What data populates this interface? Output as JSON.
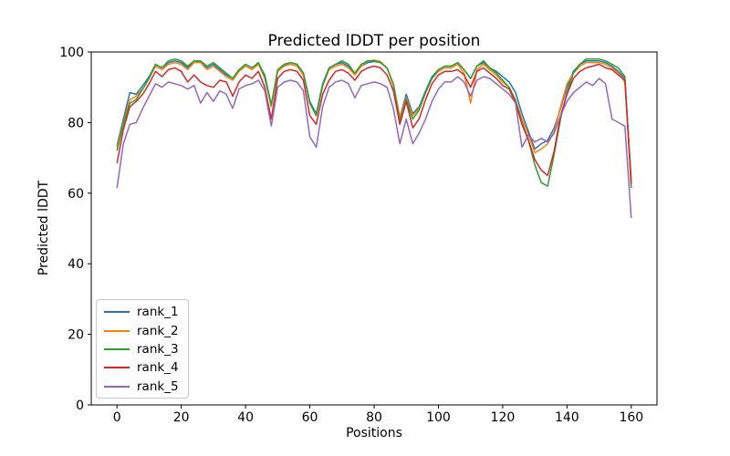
{
  "chart_data": {
    "type": "line",
    "title": "Predicted lDDT per position",
    "xlabel": "Positions",
    "ylabel": "Predicted lDDT",
    "xlim": [
      -8,
      168
    ],
    "ylim": [
      0,
      100
    ],
    "x_ticks": [
      0,
      20,
      40,
      60,
      80,
      100,
      120,
      140,
      160
    ],
    "y_ticks": [
      0,
      20,
      40,
      60,
      80,
      100
    ],
    "grid": false,
    "legend_position": "lower left",
    "axis_color": "#000000",
    "background_color": "#ffffff",
    "x": [
      0,
      2,
      4,
      6,
      8,
      10,
      12,
      14,
      16,
      18,
      20,
      22,
      24,
      26,
      28,
      30,
      32,
      34,
      36,
      38,
      40,
      42,
      44,
      46,
      48,
      50,
      52,
      54,
      56,
      58,
      60,
      62,
      64,
      66,
      68,
      70,
      72,
      74,
      76,
      78,
      80,
      82,
      84,
      86,
      88,
      90,
      92,
      94,
      96,
      98,
      100,
      102,
      104,
      106,
      108,
      110,
      112,
      114,
      116,
      118,
      120,
      122,
      124,
      126,
      128,
      130,
      132,
      134,
      136,
      138,
      140,
      142,
      144,
      146,
      148,
      150,
      152,
      154,
      156,
      158,
      160
    ],
    "series": [
      {
        "name": "rank_1",
        "color": "#1f77b4",
        "values": [
          73.5,
          81,
          88.5,
          88,
          90.5,
          93,
          96.5,
          95.5,
          97,
          97.5,
          97,
          95.5,
          97.5,
          97,
          95.5,
          96.5,
          95,
          93.5,
          92.5,
          95,
          96.5,
          95.5,
          96.8,
          93.5,
          85,
          94.5,
          96.3,
          97,
          96.5,
          94,
          86,
          82.5,
          91,
          95.5,
          96.5,
          97,
          96,
          94,
          96,
          97,
          97.3,
          97,
          95.5,
          91,
          81.5,
          88,
          82.5,
          84.5,
          89,
          93,
          95,
          96,
          96,
          97,
          95,
          92.5,
          96,
          97,
          95.5,
          94.5,
          93,
          91.5,
          88.5,
          82.5,
          77.5,
          72.5,
          74,
          75,
          78.5,
          84,
          90,
          94.5,
          96.5,
          97.5,
          97.5,
          97.5,
          97,
          96,
          94.5,
          92.5,
          63
        ]
      },
      {
        "name": "rank_2",
        "color": "#ff7f0e",
        "values": [
          73,
          80,
          86.5,
          87.5,
          89.5,
          92.5,
          96,
          95,
          96.5,
          97,
          96.5,
          95,
          97,
          97,
          95,
          96,
          94.5,
          93,
          92,
          94.5,
          96,
          95,
          96.5,
          92.5,
          84.5,
          94.5,
          96,
          96.5,
          96,
          93.5,
          85.5,
          82,
          90.5,
          95,
          96,
          96.5,
          95.5,
          93.5,
          96,
          97.5,
          97.7,
          97.3,
          95.5,
          91,
          81.5,
          87,
          82,
          84,
          88.5,
          92.5,
          94.5,
          95.5,
          95.5,
          96.5,
          94,
          85.5,
          95,
          96.5,
          95,
          93.5,
          91.5,
          90,
          86.5,
          81,
          76.5,
          71.5,
          72.5,
          74,
          77.5,
          84.5,
          91,
          94,
          96,
          97,
          97,
          97,
          96.5,
          95.5,
          94,
          91.5,
          64
        ]
      },
      {
        "name": "rank_3",
        "color": "#2ca02c",
        "values": [
          72,
          79.5,
          85.5,
          86.5,
          89.5,
          92.5,
          96.5,
          95.5,
          97.5,
          98,
          97.5,
          96,
          97.5,
          97.5,
          96,
          97,
          95.5,
          94,
          92.5,
          95,
          96.5,
          95.5,
          97,
          93,
          85,
          95,
          96.5,
          97,
          96.5,
          94,
          85.5,
          82,
          90.5,
          95.5,
          96.5,
          97.5,
          96.5,
          94,
          96.5,
          97.5,
          97.5,
          97,
          95.5,
          90.5,
          80.5,
          86.5,
          81,
          83.5,
          88.5,
          92.5,
          95,
          96,
          96,
          97,
          95,
          92.5,
          96,
          97.5,
          95.5,
          94,
          92,
          90,
          86,
          80,
          75,
          68,
          63,
          62,
          71,
          81,
          88.5,
          94,
          96.5,
          98,
          98,
          98,
          97.5,
          96.5,
          95.5,
          93,
          61.5
        ]
      },
      {
        "name": "rank_4",
        "color": "#d62728",
        "values": [
          68.5,
          78,
          84.5,
          86,
          88,
          91,
          94.5,
          93,
          95,
          95.5,
          94.5,
          91.5,
          93.5,
          91.5,
          90.5,
          90,
          92,
          91.5,
          87.5,
          91.5,
          93.5,
          92.5,
          94.5,
          90,
          81,
          92.5,
          94.5,
          95,
          94.5,
          92,
          82,
          79.5,
          88,
          92,
          94.5,
          95,
          94,
          92,
          94.5,
          95.5,
          96,
          95.5,
          93.5,
          89,
          79.5,
          86,
          78.5,
          81,
          86.5,
          91,
          93.5,
          94.5,
          94.5,
          95,
          93.5,
          90,
          94.5,
          95.5,
          94,
          92.5,
          90.5,
          89.5,
          85.5,
          79.5,
          75,
          69.5,
          66.5,
          65,
          72,
          82,
          88,
          92.5,
          94.5,
          95.5,
          96,
          96.5,
          95.5,
          95,
          93.5,
          92,
          62.5
        ]
      },
      {
        "name": "rank_5",
        "color": "#9467bd",
        "values": [
          61.5,
          74,
          79.5,
          80,
          84,
          87.5,
          91,
          90,
          91.5,
          91,
          90.5,
          89.5,
          90.5,
          85.5,
          88.5,
          86,
          89,
          88,
          84,
          89.5,
          90.5,
          91,
          92,
          89,
          79,
          90,
          91.5,
          92,
          91.5,
          89,
          76,
          73,
          84.5,
          90,
          91.5,
          92,
          91,
          87,
          90.5,
          91,
          91.5,
          91,
          90,
          84,
          74,
          81,
          74,
          77,
          81,
          86,
          89.5,
          91.5,
          91.5,
          93,
          91.5,
          87.5,
          92,
          93,
          92.5,
          91,
          89.5,
          88,
          85.5,
          73,
          76.5,
          74.5,
          75.5,
          74.5,
          77,
          82,
          86,
          88.5,
          90,
          91.5,
          90.5,
          92.5,
          91,
          81,
          80,
          79,
          53
        ]
      }
    ]
  }
}
